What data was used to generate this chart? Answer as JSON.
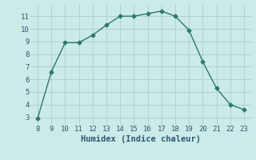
{
  "x": [
    8,
    9,
    10,
    11,
    12,
    13,
    14,
    15,
    16,
    17,
    18,
    19,
    20,
    21,
    22,
    23
  ],
  "y": [
    2.9,
    6.6,
    8.9,
    8.9,
    9.5,
    10.3,
    11.0,
    11.0,
    11.2,
    11.4,
    11.0,
    9.9,
    7.4,
    5.3,
    4.0,
    3.6
  ],
  "xlabel": "Humidex (Indice chaleur)",
  "xlim": [
    7.5,
    23.5
  ],
  "ylim": [
    2.4,
    11.9
  ],
  "yticks": [
    3,
    4,
    5,
    6,
    7,
    8,
    9,
    10,
    11
  ],
  "xticks": [
    8,
    9,
    10,
    11,
    12,
    13,
    14,
    15,
    16,
    17,
    18,
    19,
    20,
    21,
    22,
    23
  ],
  "line_color": "#2a7b6e",
  "marker": "D",
  "marker_size": 2.5,
  "bg_color": "#cceae8",
  "grid_color": "#aad4d0",
  "font_color": "#2a5a70",
  "tick_fontsize": 6.5,
  "xlabel_fontsize": 7.5
}
